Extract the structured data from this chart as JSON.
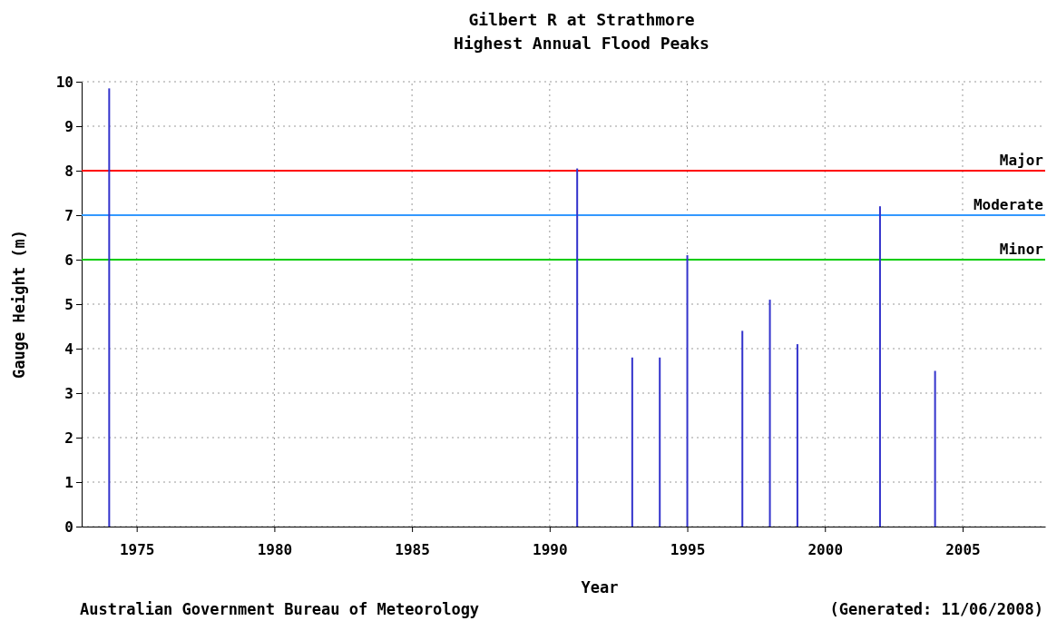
{
  "chart_data": {
    "type": "bar",
    "title": "Gilbert R at Strathmore",
    "subtitle": "Highest Annual Flood Peaks",
    "xlabel": "Year",
    "ylabel": "Gauge Height (m)",
    "x": [
      1974,
      1991,
      1993,
      1994,
      1995,
      1997,
      1998,
      1999,
      2002,
      2004
    ],
    "values": [
      9.85,
      8.05,
      3.8,
      3.8,
      6.1,
      4.4,
      5.1,
      4.1,
      7.2,
      3.5
    ],
    "color": "#3333cc",
    "xlim": [
      1973,
      2008
    ],
    "xticks": [
      1975,
      1980,
      1985,
      1990,
      1995,
      2000,
      2005
    ],
    "ylim": [
      0,
      10
    ],
    "yticks": [
      0,
      1,
      2,
      3,
      4,
      5,
      6,
      7,
      8,
      9,
      10
    ],
    "grid": true,
    "ref_lines": [
      {
        "axis": "y",
        "value": 8,
        "label": "Major",
        "color": "#ff0000"
      },
      {
        "axis": "y",
        "value": 7,
        "label": "Moderate",
        "color": "#3399ff"
      },
      {
        "axis": "y",
        "value": 6,
        "label": "Minor",
        "color": "#00cc00"
      }
    ],
    "annotations": [
      "Australian Government Bureau of Meteorology",
      "(Generated: 11/06/2008)"
    ]
  }
}
